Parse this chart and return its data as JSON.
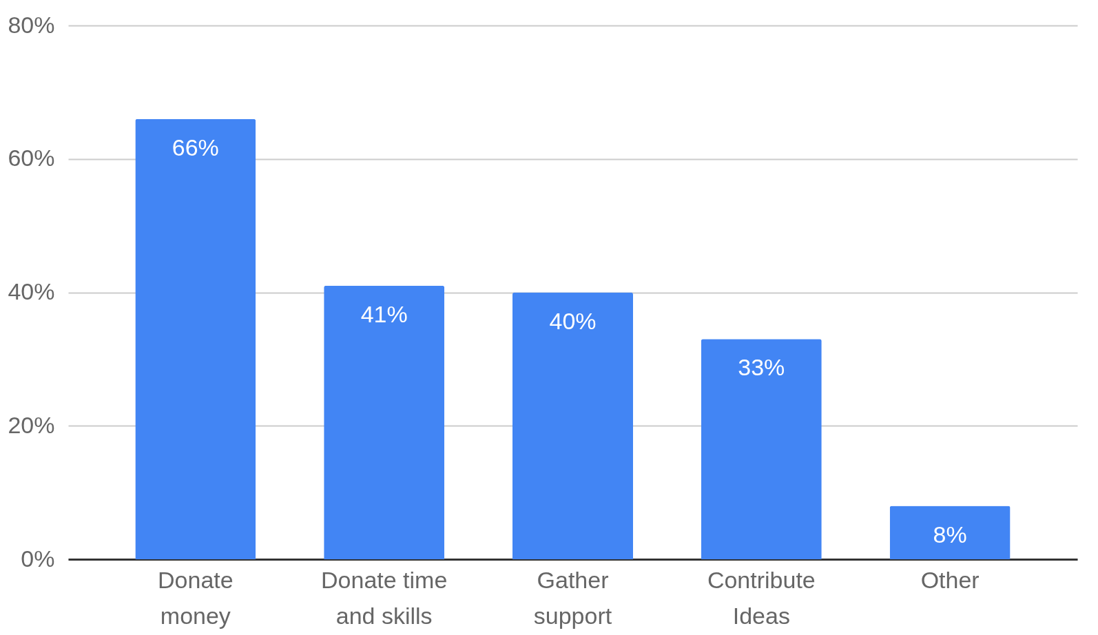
{
  "chart_data": {
    "type": "bar",
    "categories": [
      "Donate money",
      "Donate time and skills",
      "Gather support",
      "Contribute Ideas",
      "Other"
    ],
    "values": [
      66,
      41,
      40,
      33,
      8
    ],
    "value_labels": [
      "66%",
      "41%",
      "40%",
      "33%",
      "8%"
    ],
    "color": "#4285f4",
    "ylim": [
      0,
      80
    ],
    "yticks": [
      {
        "value": 0,
        "label": "0%"
      },
      {
        "value": 20,
        "label": "20%"
      },
      {
        "value": 40,
        "label": "40%"
      },
      {
        "value": 60,
        "label": "60%"
      },
      {
        "value": 80,
        "label": "80%"
      }
    ],
    "grid": "y"
  }
}
